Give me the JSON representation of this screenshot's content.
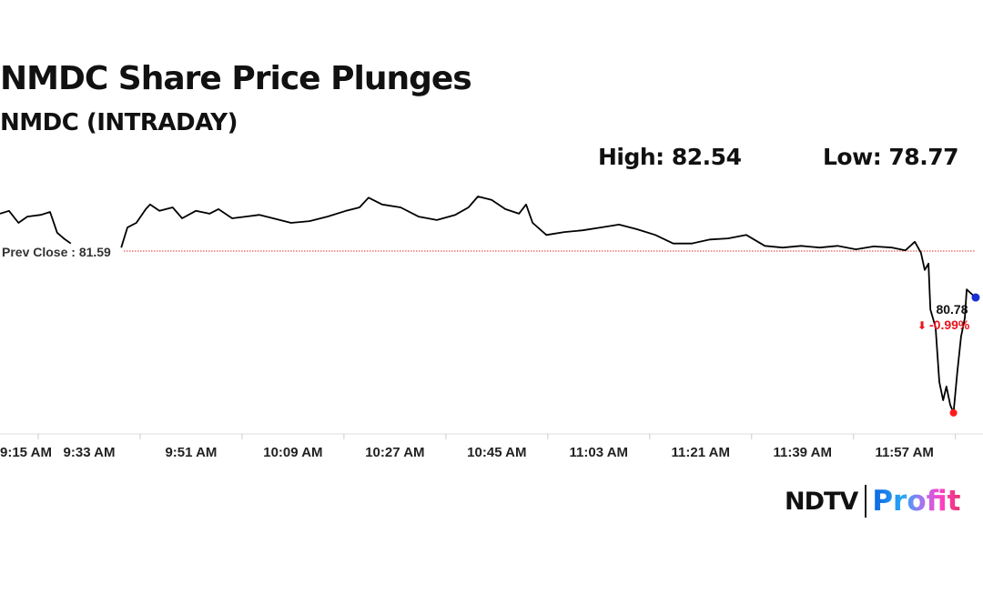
{
  "chart_data": {
    "type": "line",
    "title": "NMDC Share Price Plunges",
    "subtitle": "NMDC (INTRADAY)",
    "high_label": "High: 82.54",
    "low_label": "Low: 78.77",
    "prev_close_label": "Prev Close : 81.59",
    "prev_close": 81.59,
    "last_price_label": "80.78",
    "change_label": "-0.99%",
    "change_arrow": "down-arrow-icon",
    "x_ticks": [
      "9:15 AM",
      "9:33 AM",
      "9:51 AM",
      "10:09 AM",
      "10:27 AM",
      "10:45 AM",
      "11:03 AM",
      "11:21 AM",
      "11:39 AM",
      "11:57 AM"
    ],
    "ylim": [
      78.77,
      82.54
    ],
    "grid": false,
    "colors": {
      "line": "#000000",
      "prev_close": "#d9302c",
      "low_marker": "#ff1a1a",
      "last_marker": "#1a2fd6",
      "change": "#e8141c"
    },
    "points": [
      [
        "9:17:15",
        82.24
      ],
      [
        "9:18:50",
        82.29
      ],
      [
        "9:20:30",
        82.08
      ],
      [
        "9:22:05",
        82.19
      ],
      [
        "9:24:30",
        82.22
      ],
      [
        "9:26:05",
        82.27
      ],
      [
        "9:26:55",
        82.03
      ],
      [
        "9:27:20",
        81.91
      ],
      [
        "9:28:30",
        81.81
      ],
      [
        "9:29:45",
        81.72
      ],
      [
        "9:33:00",
        null
      ],
      [
        "9:38:40",
        81.65
      ],
      [
        "9:39:45",
        82.0
      ],
      [
        "9:41:20",
        82.08
      ],
      [
        "9:43:00",
        82.32
      ],
      [
        "9:43:45",
        82.4
      ],
      [
        "9:45:25",
        82.29
      ],
      [
        "9:47:45",
        82.35
      ],
      [
        "9:49:25",
        82.16
      ],
      [
        "9:51:50",
        82.29
      ],
      [
        "9:54:15",
        82.24
      ],
      [
        "9:55:50",
        82.32
      ],
      [
        "9:58:15",
        82.16
      ],
      [
        "10:00:40",
        82.19
      ],
      [
        "10:03:05",
        82.22
      ],
      [
        "10:05:30",
        82.16
      ],
      [
        "10:08:40",
        82.08
      ],
      [
        "10:11:55",
        82.11
      ],
      [
        "10:15:05",
        82.19
      ],
      [
        "10:18:20",
        82.29
      ],
      [
        "10:20:45",
        82.35
      ],
      [
        "10:22:20",
        82.52
      ],
      [
        "10:24:45",
        82.4
      ],
      [
        "10:28:00",
        82.35
      ],
      [
        "10:31:10",
        82.19
      ],
      [
        "10:34:25",
        82.13
      ],
      [
        "10:37:40",
        82.22
      ],
      [
        "10:40:00",
        82.35
      ],
      [
        "10:41:40",
        82.54
      ],
      [
        "10:44:05",
        82.48
      ],
      [
        "10:46:30",
        82.32
      ],
      [
        "10:48:55",
        82.24
      ],
      [
        "10:50:10",
        82.4
      ],
      [
        "10:51:20",
        82.08
      ],
      [
        "10:53:45",
        81.87
      ],
      [
        "10:56:55",
        81.92
      ],
      [
        "11:00:10",
        81.95
      ],
      [
        "11:03:20",
        82.0
      ],
      [
        "11:06:35",
        82.05
      ],
      [
        "11:09:45",
        81.97
      ],
      [
        "11:13:00",
        81.87
      ],
      [
        "11:16:10",
        81.72
      ],
      [
        "11:19:25",
        81.72
      ],
      [
        "11:22:40",
        81.79
      ],
      [
        "11:25:50",
        81.81
      ],
      [
        "11:29:05",
        81.87
      ],
      [
        "11:32:20",
        81.68
      ],
      [
        "11:35:30",
        81.65
      ],
      [
        "11:38:45",
        81.68
      ],
      [
        "11:42:00",
        81.65
      ],
      [
        "11:45:10",
        81.68
      ],
      [
        "11:48:25",
        81.62
      ],
      [
        "11:51:35",
        81.67
      ],
      [
        "11:54:50",
        81.65
      ],
      [
        "11:57:10",
        81.6
      ],
      [
        "11:58:50",
        81.75
      ],
      [
        "11:59:55",
        81.56
      ],
      [
        "12:00:35",
        81.26
      ],
      [
        "12:01:15",
        81.37
      ],
      [
        "12:01:35",
        80.57
      ],
      [
        "12:02:30",
        80.26
      ],
      [
        "12:03:10",
        79.31
      ],
      [
        "12:03:50",
        78.99
      ],
      [
        "12:04:25",
        79.23
      ],
      [
        "12:05:05",
        78.91
      ],
      [
        "12:05:40",
        78.77
      ],
      [
        "12:06:20",
        79.47
      ],
      [
        "12:07:00",
        80.1
      ],
      [
        "12:07:40",
        80.42
      ],
      [
        "12:08:00",
        80.92
      ],
      [
        "12:08:40",
        80.86
      ],
      [
        "12:09:35",
        80.78
      ]
    ]
  },
  "branding": {
    "ndtv": "NDTV",
    "profit": "Profit"
  }
}
